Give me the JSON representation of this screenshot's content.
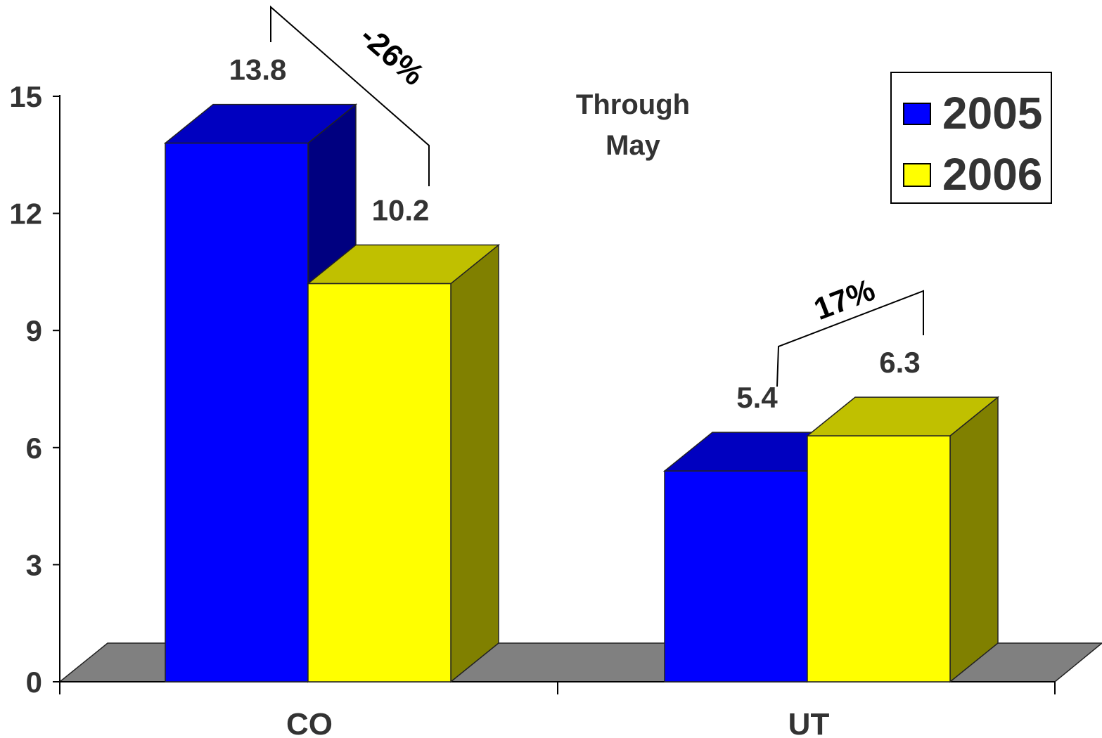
{
  "chart_data": {
    "type": "bar",
    "categories": [
      "CO",
      "UT"
    ],
    "series": [
      {
        "name": "2005",
        "values": [
          13.8,
          5.4
        ]
      },
      {
        "name": "2006",
        "values": [
          10.2,
          6.3
        ]
      }
    ],
    "data_labels": [
      [
        "13.8",
        "5.4"
      ],
      [
        "10.2",
        "6.3"
      ]
    ],
    "ylim": [
      0,
      15
    ],
    "yticks": [
      "0",
      "3",
      "6",
      "9",
      "12",
      "15"
    ],
    "annotation": {
      "line1": "Through",
      "line2": "May"
    },
    "changes": [
      {
        "category": "CO",
        "label": "-26%"
      },
      {
        "category": "UT",
        "label": "17%"
      }
    ],
    "legend_position": "top-right",
    "grid": false,
    "three_d": true
  },
  "colors": {
    "series_2005": {
      "front": "#0000ff",
      "top": "#0000c0",
      "side": "#000080"
    },
    "series_2006": {
      "front": "#ffff00",
      "top": "#c0c000",
      "side": "#808000"
    },
    "floor": "#808080"
  }
}
